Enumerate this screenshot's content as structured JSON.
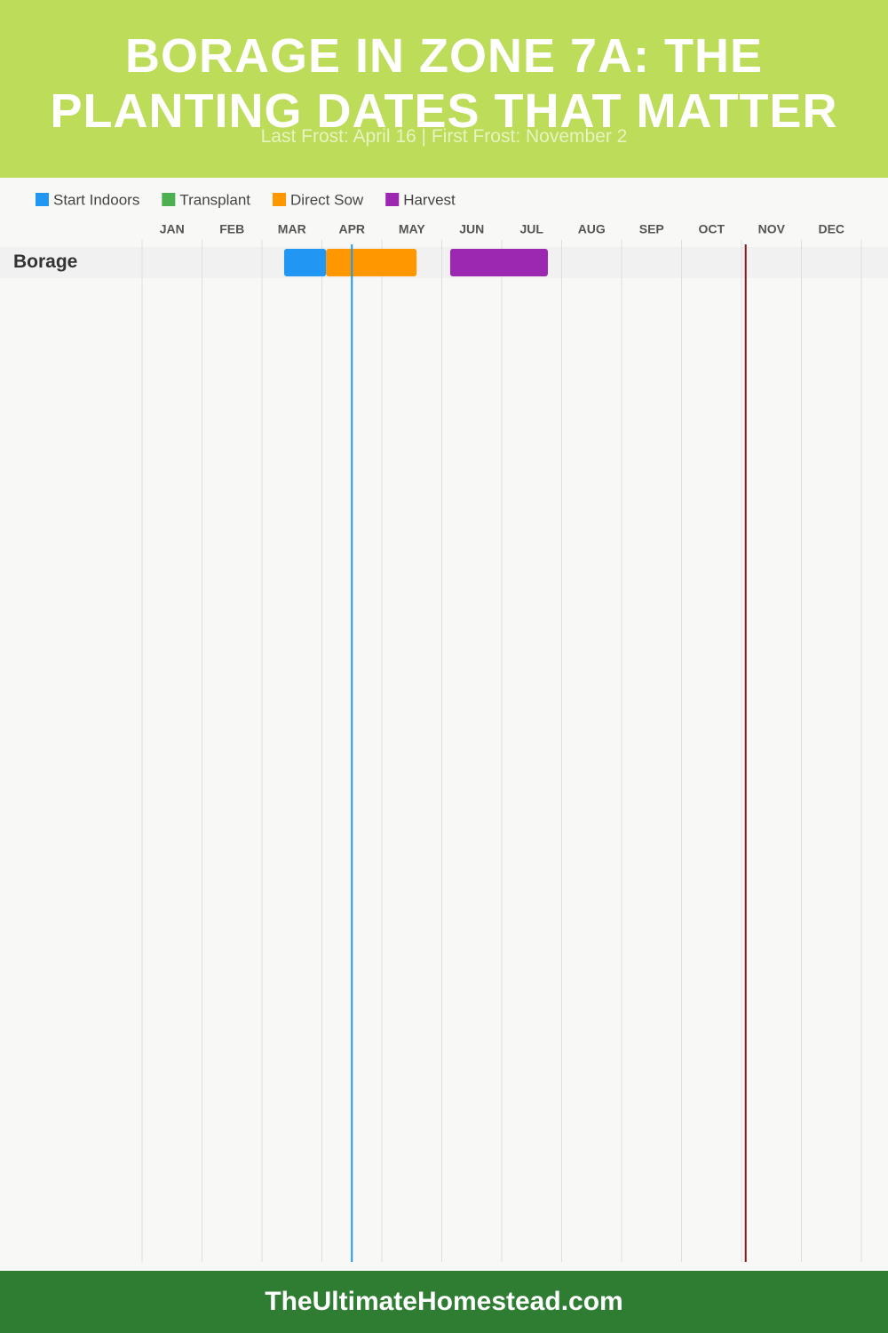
{
  "chart_data": {
    "type": "gantt",
    "title": "BORAGE IN ZONE 7A: THE PLANTING DATES THAT MATTER",
    "subtitle": "Last Frost: April 16 | First Frost: November 2",
    "categories": [
      "JAN",
      "FEB",
      "MAR",
      "APR",
      "MAY",
      "JUN",
      "JUL",
      "AUG",
      "SEP",
      "OCT",
      "NOV",
      "DEC"
    ],
    "xlim": [
      0,
      12
    ],
    "rows": [
      "Borage"
    ],
    "series": [
      {
        "name": "Start Indoors",
        "color": "#2196f3",
        "ranges": [
          [
            2.37,
            3.07
          ]
        ]
      },
      {
        "name": "Transplant",
        "color": "#4caf50",
        "ranges": []
      },
      {
        "name": "Direct Sow",
        "color": "#ff9800",
        "ranges": [
          [
            3.07,
            4.58
          ]
        ]
      },
      {
        "name": "Harvest",
        "color": "#9c27b0",
        "ranges": [
          [
            5.14,
            6.77
          ]
        ]
      }
    ],
    "frost_lines": [
      {
        "value": 3.5,
        "color": "#2196f3"
      },
      {
        "value": 10.07,
        "color": "#8b1a1a"
      }
    ],
    "grid": true
  },
  "footer": "TheUltimateHomestead.com"
}
